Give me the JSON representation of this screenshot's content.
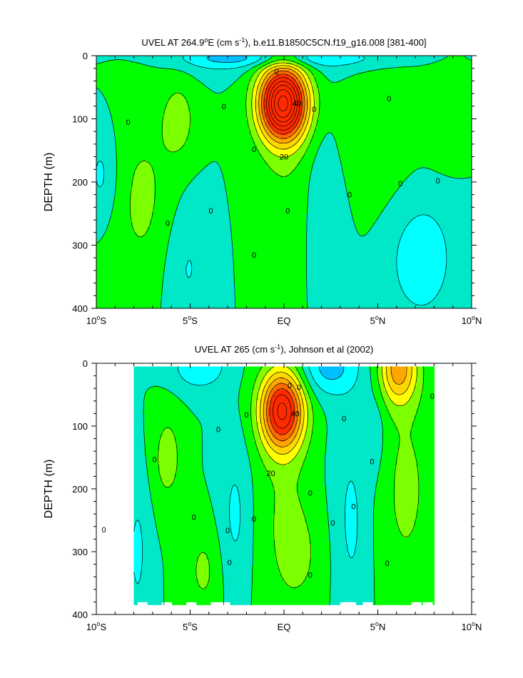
{
  "chart_data": [
    {
      "type": "contour",
      "title": "UVEL AT 264.9°E (cm s⁻¹), b.e11.B1850C5CN.f19_g16.008 [381-400]",
      "title_parts": {
        "pre": "UVEL AT 264.9",
        "deg": "o",
        "mid": "E (cm s",
        "sup": "-1",
        "post": "), b.e11.B1850C5CN.f19_g16.008 [381-400]"
      },
      "ylabel": "DEPTH (m)",
      "xlim": [
        -10,
        10
      ],
      "ylim": [
        0,
        400
      ],
      "y_inverted": true,
      "xticks": [
        -10,
        -5,
        0,
        5,
        10
      ],
      "xtick_labels": [
        {
          "num": "10",
          "deg": "o",
          "suffix": "S"
        },
        {
          "num": "5",
          "deg": "o",
          "suffix": "S"
        },
        {
          "num": "EQ",
          "deg": "",
          "suffix": ""
        },
        {
          "num": "5",
          "deg": "o",
          "suffix": "N"
        },
        {
          "num": "10",
          "deg": "o",
          "suffix": "N"
        }
      ],
      "yticks": [
        0,
        100,
        200,
        300,
        400
      ],
      "ytick_labels": [
        "0",
        "100",
        "200",
        "300",
        "400"
      ],
      "contour_interval": 5,
      "colors": [
        "#1e90ff",
        "#00bfff",
        "#00ffff",
        "#00e8c8",
        "#00ff00",
        "#7cff00",
        "#ffff00",
        "#ffd700",
        "#ffa500",
        "#ff6a00",
        "#ff2a00"
      ],
      "jet": {
        "lat": 0,
        "depth": 75,
        "max": 55
      },
      "contour_labels": [
        {
          "lat": -0.4,
          "depth": 25,
          "text": "0"
        },
        {
          "lat": 0.7,
          "depth": 75,
          "text": "40"
        },
        {
          "lat": 0.0,
          "depth": 160,
          "text": "20"
        },
        {
          "lat": -8.3,
          "depth": 105,
          "text": "0"
        },
        {
          "lat": -3.2,
          "depth": 80,
          "text": "0"
        },
        {
          "lat": -1.6,
          "depth": 148,
          "text": "0"
        },
        {
          "lat": 1.6,
          "depth": 85,
          "text": "0"
        },
        {
          "lat": -6.2,
          "depth": 265,
          "text": "0"
        },
        {
          "lat": -3.9,
          "depth": 245,
          "text": "0"
        },
        {
          "lat": 0.2,
          "depth": 245,
          "text": "0"
        },
        {
          "lat": -1.6,
          "depth": 315,
          "text": "0"
        },
        {
          "lat": 3.5,
          "depth": 220,
          "text": "0"
        },
        {
          "lat": 5.6,
          "depth": 68,
          "text": "0"
        },
        {
          "lat": 6.2,
          "depth": 202,
          "text": "0"
        },
        {
          "lat": 8.2,
          "depth": 198,
          "text": "0"
        }
      ]
    },
    {
      "type": "contour",
      "title": "UVEL AT 265 (cm s⁻¹), Johnson et al (2002)",
      "title_parts": {
        "pre": "UVEL AT 265",
        "deg": "",
        "mid": " (cm s",
        "sup": "-1",
        "post": "), Johnson et al (2002)"
      },
      "ylabel": "DEPTH (m)",
      "xlim": [
        -10,
        10
      ],
      "ylim": [
        0,
        400
      ],
      "y_inverted": true,
      "data_extent": {
        "lat": [
          -8,
          8
        ],
        "depth": [
          5,
          385
        ]
      },
      "xticks": [
        -10,
        -5,
        0,
        5,
        10
      ],
      "xtick_labels": [
        {
          "num": "10",
          "deg": "o",
          "suffix": "S"
        },
        {
          "num": "5",
          "deg": "o",
          "suffix": "S"
        },
        {
          "num": "EQ",
          "deg": "",
          "suffix": ""
        },
        {
          "num": "5",
          "deg": "o",
          "suffix": "N"
        },
        {
          "num": "10",
          "deg": "o",
          "suffix": "N"
        }
      ],
      "yticks": [
        0,
        100,
        200,
        300,
        400
      ],
      "ytick_labels": [
        "0",
        "100",
        "200",
        "300",
        "400"
      ],
      "contour_interval": 5,
      "colors": [
        "#1e90ff",
        "#00bfff",
        "#00ffff",
        "#00e8c8",
        "#00ff00",
        "#7cff00",
        "#ffff00",
        "#ffd700",
        "#ffa500",
        "#ff6a00",
        "#ff2a00"
      ],
      "jet": {
        "lat": 0,
        "depth": 75,
        "max": 40
      },
      "contour_labels": [
        {
          "lat": 0.3,
          "depth": 35,
          "text": "0"
        },
        {
          "lat": 0.8,
          "depth": 38,
          "text": "0"
        },
        {
          "lat": 0.6,
          "depth": 80,
          "text": "40"
        },
        {
          "lat": -0.7,
          "depth": 175,
          "text": "20"
        },
        {
          "lat": -3.5,
          "depth": 105,
          "text": "0"
        },
        {
          "lat": -2.0,
          "depth": 82,
          "text": "0"
        },
        {
          "lat": -6.9,
          "depth": 153,
          "text": "0"
        },
        {
          "lat": -9.6,
          "depth": 265,
          "text": "0"
        },
        {
          "lat": -4.8,
          "depth": 245,
          "text": "0"
        },
        {
          "lat": -1.6,
          "depth": 248,
          "text": "0"
        },
        {
          "lat": -3.0,
          "depth": 266,
          "text": "0"
        },
        {
          "lat": -2.9,
          "depth": 317,
          "text": "0"
        },
        {
          "lat": 1.4,
          "depth": 206,
          "text": "0"
        },
        {
          "lat": 3.2,
          "depth": 88,
          "text": "0"
        },
        {
          "lat": 4.7,
          "depth": 156,
          "text": "0"
        },
        {
          "lat": 3.7,
          "depth": 228,
          "text": "0"
        },
        {
          "lat": 2.6,
          "depth": 254,
          "text": "0"
        },
        {
          "lat": 1.4,
          "depth": 337,
          "text": "0"
        },
        {
          "lat": 5.5,
          "depth": 318,
          "text": "0"
        },
        {
          "lat": 7.9,
          "depth": 52,
          "text": "0"
        }
      ]
    }
  ]
}
